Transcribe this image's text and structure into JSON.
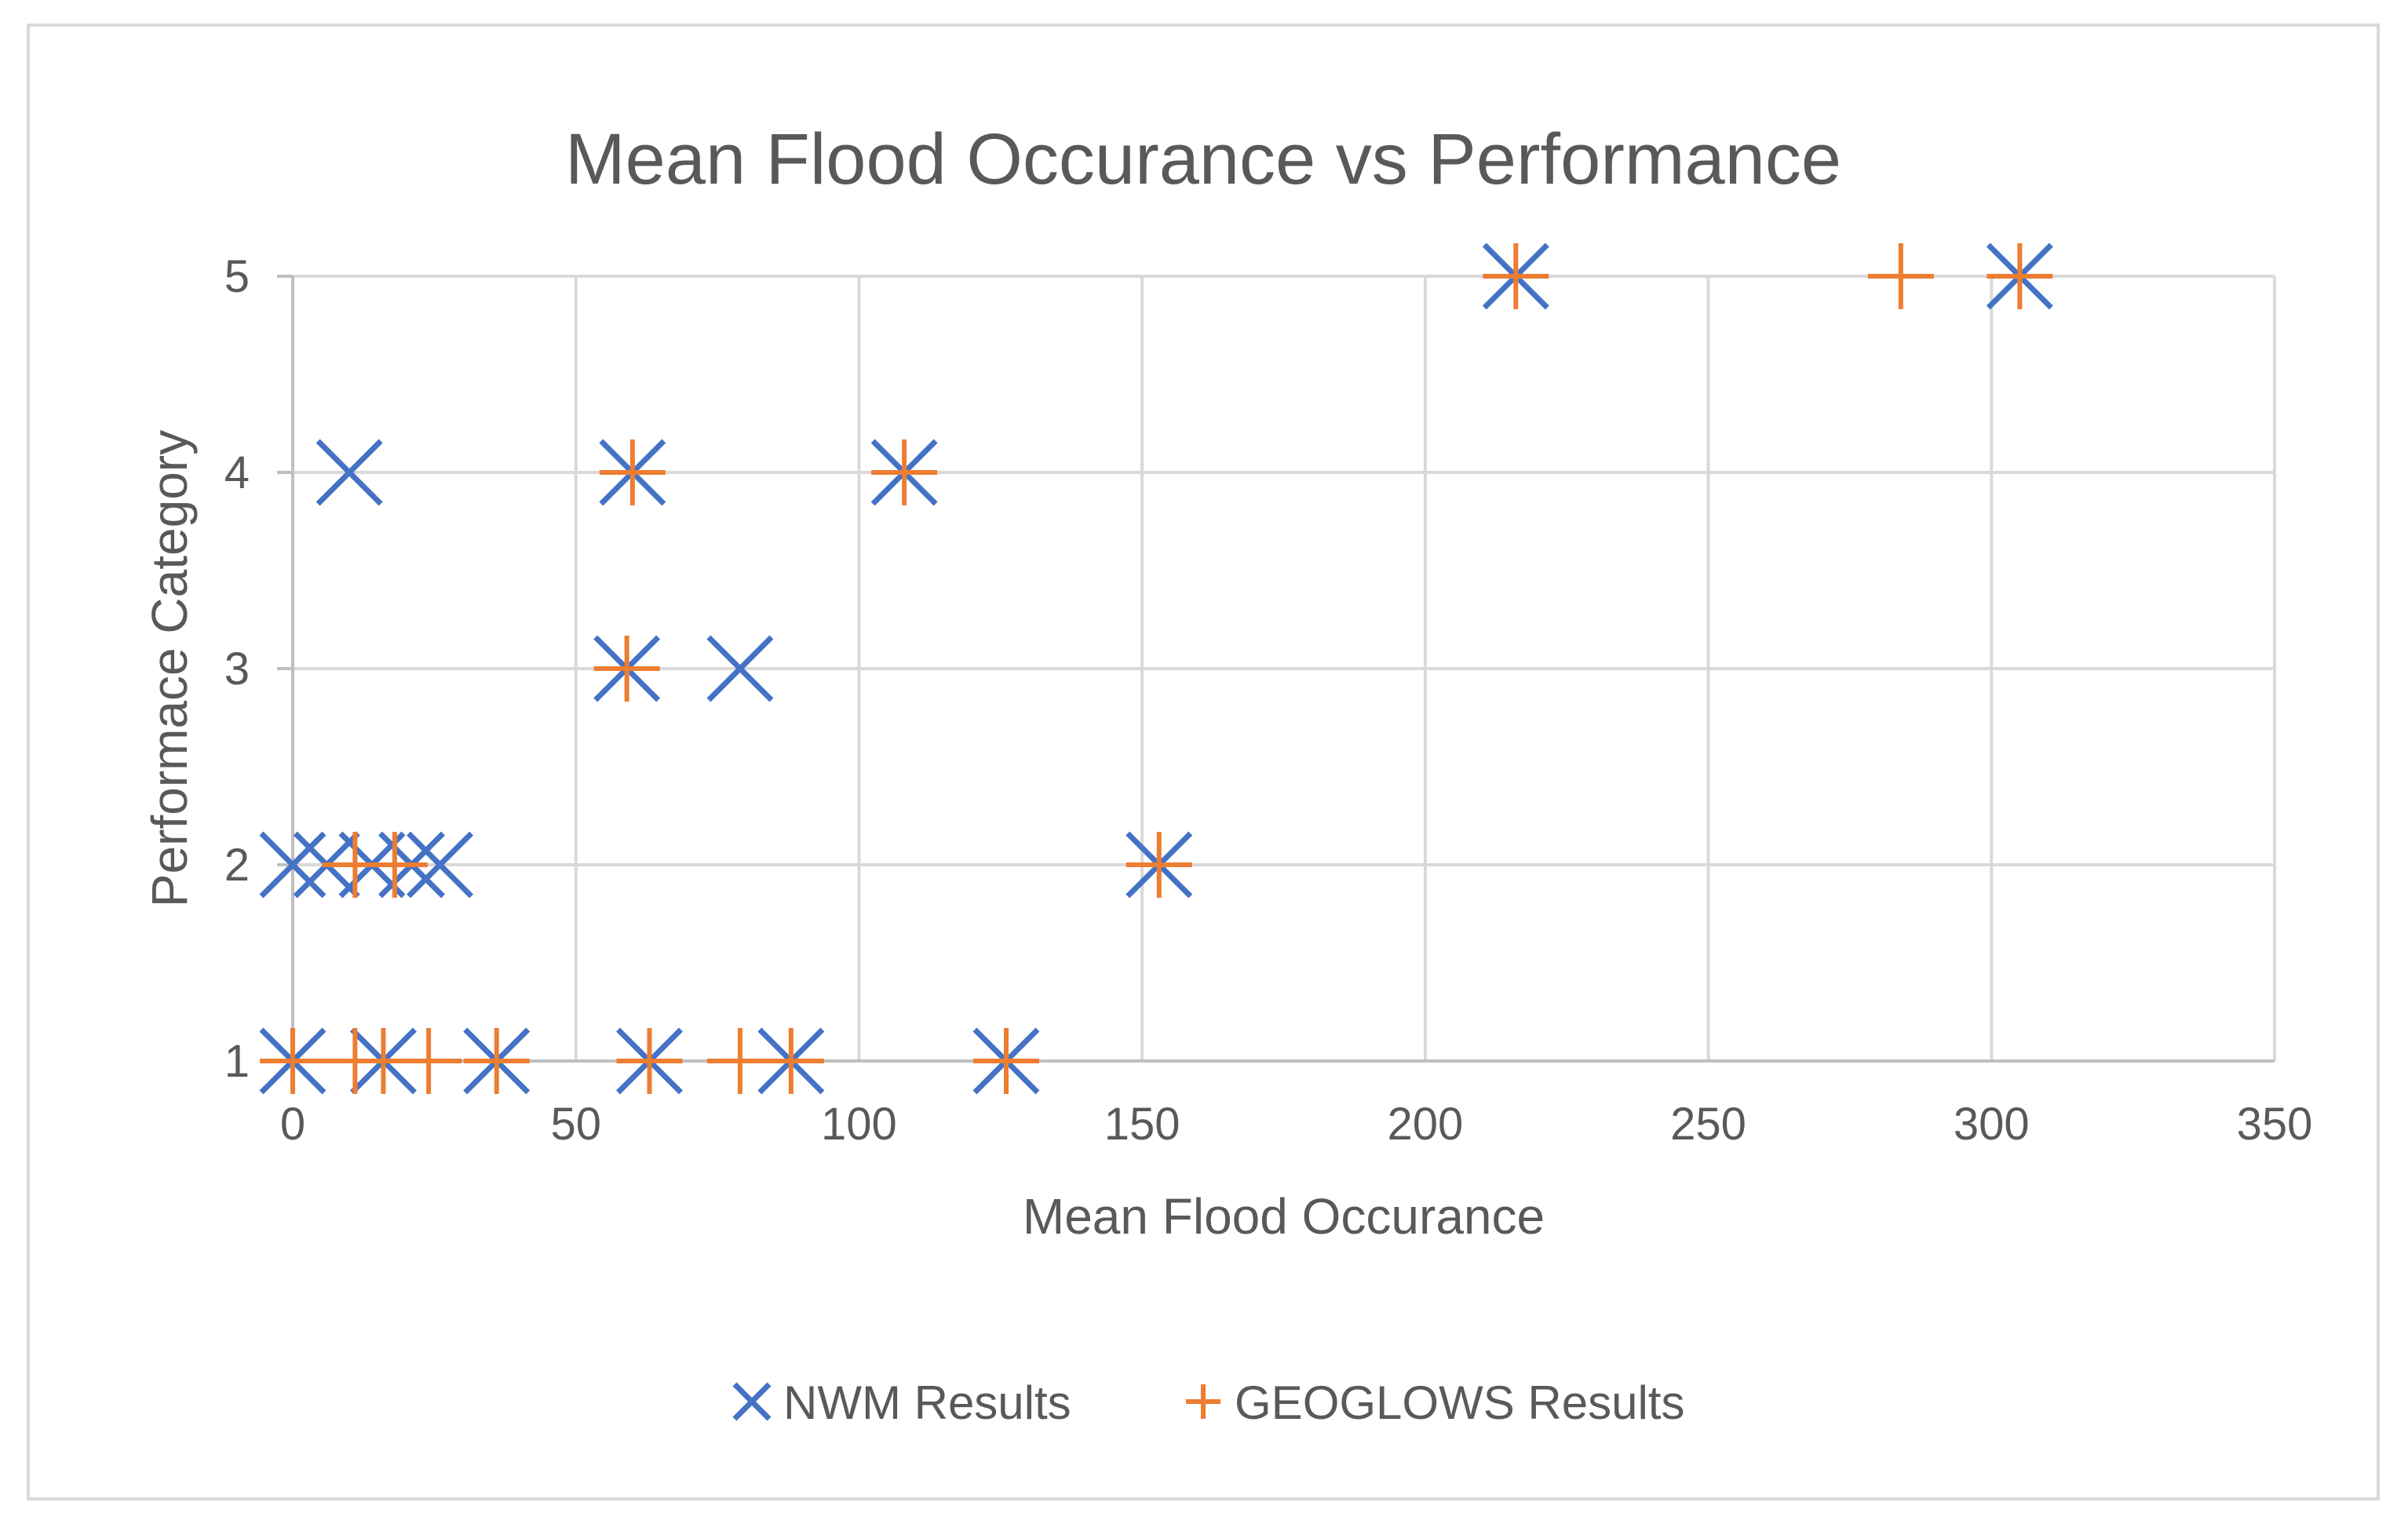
{
  "chart_data": {
    "type": "scatter",
    "title": "Mean Flood Occurance vs Performance",
    "xlabel": "Mean Flood Occurance",
    "ylabel": "Performace Category",
    "xlim": [
      0,
      350
    ],
    "ylim": [
      1,
      5
    ],
    "xticks": [
      "0",
      "50",
      "100",
      "150",
      "200",
      "250",
      "300",
      "350"
    ],
    "yticks": [
      "1",
      "2",
      "3",
      "4",
      "5"
    ],
    "grid": true,
    "legend_position": "bottom",
    "series": [
      {
        "name": "NWM Results",
        "marker": "x",
        "color": "#4472c4",
        "points": [
          [
            0,
            1
          ],
          [
            16,
            1
          ],
          [
            36,
            1
          ],
          [
            63,
            1
          ],
          [
            88,
            1
          ],
          [
            126,
            1
          ],
          [
            0,
            2
          ],
          [
            6,
            2
          ],
          [
            14,
            2
          ],
          [
            21,
            2
          ],
          [
            26,
            2
          ],
          [
            153,
            2
          ],
          [
            59,
            3
          ],
          [
            79,
            3
          ],
          [
            10,
            4
          ],
          [
            60,
            4
          ],
          [
            108,
            4
          ],
          [
            216,
            5
          ],
          [
            305,
            5
          ]
        ]
      },
      {
        "name": "GEOGLOWS Results",
        "marker": "+",
        "color": "#ed7d31",
        "points": [
          [
            0,
            1
          ],
          [
            11,
            1
          ],
          [
            16,
            1
          ],
          [
            24,
            1
          ],
          [
            36,
            1
          ],
          [
            63,
            1
          ],
          [
            79,
            1
          ],
          [
            88,
            1
          ],
          [
            126,
            1
          ],
          [
            11,
            2
          ],
          [
            18,
            2
          ],
          [
            153,
            2
          ],
          [
            59,
            3
          ],
          [
            60,
            4
          ],
          [
            108,
            4
          ],
          [
            216,
            5
          ],
          [
            284,
            5
          ],
          [
            305,
            5
          ]
        ]
      }
    ]
  }
}
